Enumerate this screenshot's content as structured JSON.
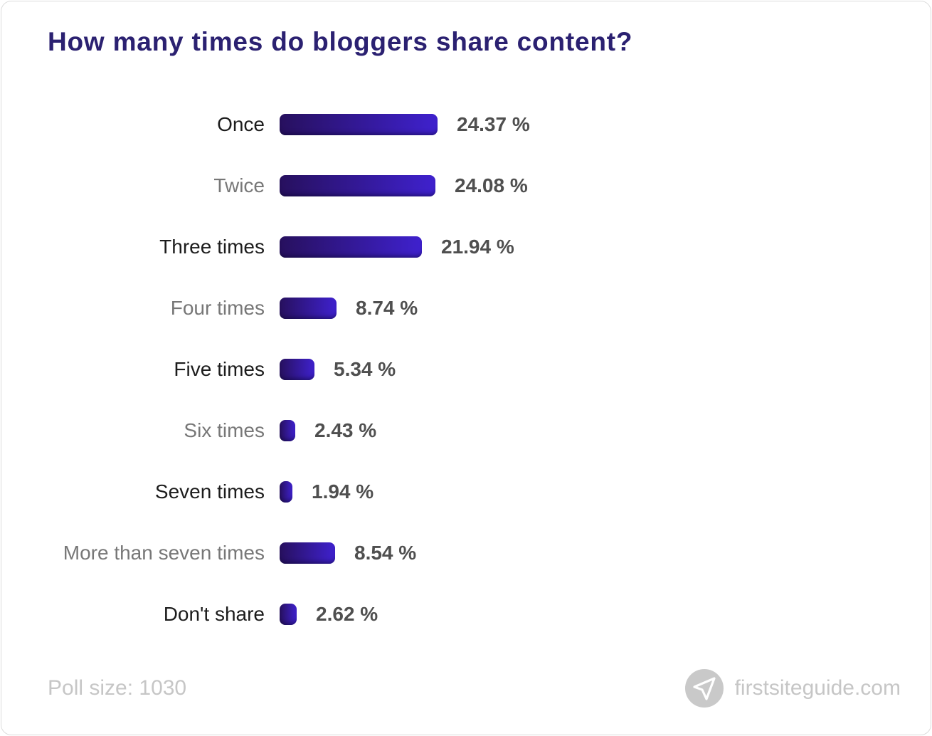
{
  "title": "How many times do bloggers share content?",
  "chart_data": {
    "type": "bar",
    "orientation": "horizontal",
    "title": "How many times do bloggers share content?",
    "categories": [
      "Once",
      "Twice",
      "Three times",
      "Four times",
      "Five times",
      "Six times",
      "Seven times",
      "More than seven times",
      "Don't share"
    ],
    "values": [
      24.37,
      24.08,
      21.94,
      8.74,
      5.34,
      2.43,
      1.94,
      8.54,
      2.62
    ],
    "value_labels": [
      "24.37 %",
      "24.08 %",
      "21.94 %",
      "8.74 %",
      "5.34 %",
      "2.43 %",
      "1.94 %",
      "8.54 %",
      "2.62 %"
    ],
    "xlabel": "",
    "ylabel": "",
    "xlim": [
      0,
      25
    ],
    "grid": false,
    "legend": false
  },
  "footer": {
    "poll_size": "Poll size: 1030",
    "brand": "firstsiteguide.com"
  },
  "icons": {
    "logo": "paper-plane-icon"
  },
  "colors": {
    "background": "#ffffff",
    "card_border": "#dcdcdc",
    "title": "#2b2171",
    "label": "#1c1c1c",
    "label_muted": "#777777",
    "value": "#4f4f4f",
    "bar_gradient_start": "#27105e",
    "bar_gradient_end": "#3f21ce",
    "footer_text": "#c6c6c6",
    "logo_circle": "#c9c9c9"
  }
}
